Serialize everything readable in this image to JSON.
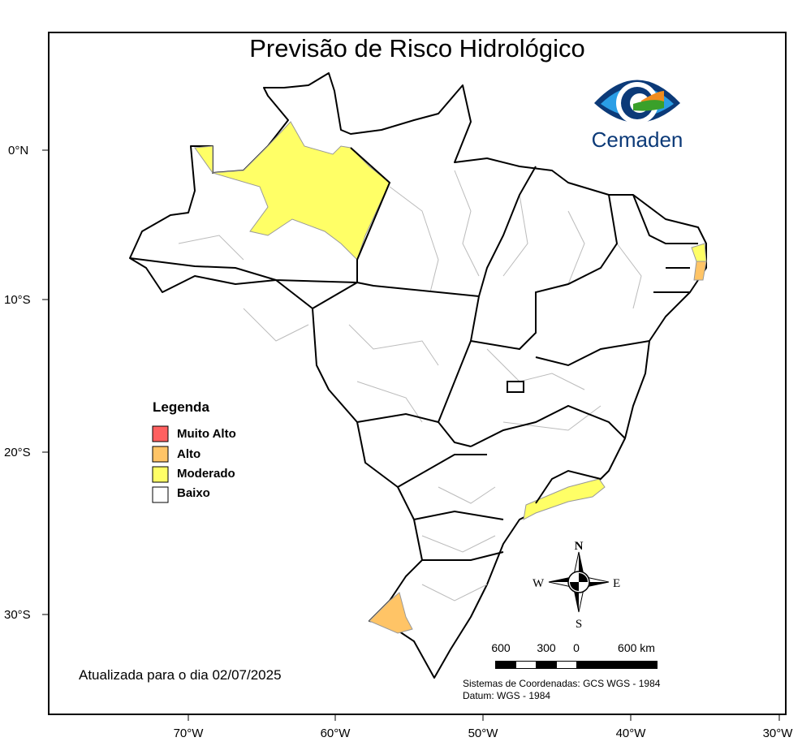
{
  "title": "Previsão de Risco Hidrológico",
  "logo": {
    "text": "Cemaden",
    "colors": {
      "dark": "#0c3a78",
      "light": "#2a9ee6",
      "orange": "#f08c1e",
      "green": "#3aa02a"
    }
  },
  "legend": {
    "title": "Legenda",
    "items": [
      {
        "label": "Muito Alto",
        "color": "#ff6060"
      },
      {
        "label": "Alto",
        "color": "#ffc466"
      },
      {
        "label": "Moderado",
        "color": "#ffff66"
      },
      {
        "label": "Baixo",
        "color": "#ffffff"
      }
    ]
  },
  "axes": {
    "lat_ticks": [
      "0°N",
      "10°S",
      "20°S",
      "30°S"
    ],
    "lon_ticks": [
      "70°W",
      "60°W",
      "50°W",
      "40°W",
      "30°W"
    ]
  },
  "compass": {
    "n": "N",
    "s": "S",
    "e": "E",
    "w": "W"
  },
  "scale_bar": {
    "labels": [
      "600",
      "300",
      "0",
      "600 km"
    ]
  },
  "coordinate_system": "Sistemas de Coordenadas: GCS WGS - 1984",
  "datum": "Datum: WGS - 1984",
  "updated": "Atualizada para o dia 02/07/2025"
}
